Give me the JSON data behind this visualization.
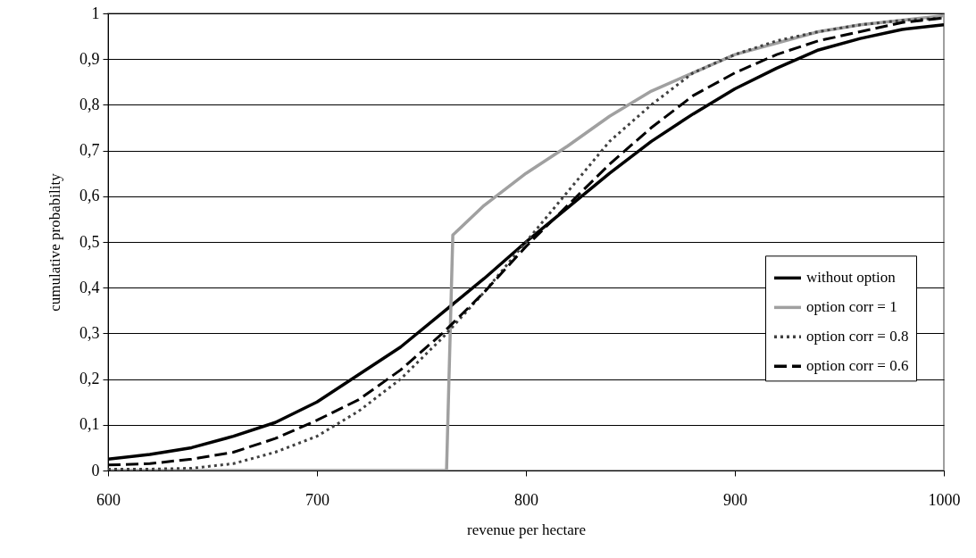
{
  "chart_data": {
    "type": "line",
    "xlabel": "revenue per hectare",
    "ylabel": "cumulative probability",
    "x": [
      600,
      620,
      640,
      660,
      680,
      700,
      720,
      740,
      760,
      780,
      800,
      820,
      840,
      860,
      880,
      900,
      920,
      940,
      960,
      980,
      1000
    ],
    "xlim": [
      600,
      1000
    ],
    "xticks": [
      600,
      700,
      800,
      900,
      1000
    ],
    "ylim": [
      0,
      1
    ],
    "yticks": [
      0,
      {
        "value": 0.1,
        "label": "0,1"
      },
      {
        "value": 0.2,
        "label": "0,2"
      },
      {
        "value": 0.3,
        "label": "0,3"
      },
      {
        "value": 0.4,
        "label": "0,4"
      },
      {
        "value": 0.5,
        "label": "0,5"
      },
      {
        "value": 0.6,
        "label": "0,6"
      },
      {
        "value": 0.7,
        "label": "0,7"
      },
      {
        "value": 0.8,
        "label": "0,8"
      },
      {
        "value": 0.9,
        "label": "0,9"
      },
      1
    ],
    "grid": "y",
    "legend": "right",
    "marker": "none",
    "series": [
      {
        "name": "without option",
        "color": "#000000",
        "line_style": "solid",
        "values": [
          0.025,
          0.035,
          0.05,
          0.075,
          0.105,
          0.15,
          0.21,
          0.27,
          0.345,
          0.42,
          0.5,
          0.575,
          0.65,
          0.72,
          0.78,
          0.835,
          0.88,
          0.92,
          0.945,
          0.965,
          0.975
        ]
      },
      {
        "name": "option corr = 1",
        "color": "#a0a0a0",
        "line_style": "solid",
        "x": [
          600,
          762,
          765,
          780,
          800,
          820,
          840,
          860,
          880,
          900,
          920,
          940,
          960,
          980,
          1000
        ],
        "values": [
          0,
          0,
          0.515,
          0.58,
          0.65,
          0.71,
          0.775,
          0.83,
          0.87,
          0.91,
          0.935,
          0.96,
          0.975,
          0.985,
          0.995
        ]
      },
      {
        "name": "option corr = 0.8",
        "color": "#404040",
        "line_style": "dotted",
        "values": [
          0.003,
          0.003,
          0.005,
          0.015,
          0.04,
          0.075,
          0.13,
          0.2,
          0.29,
          0.39,
          0.5,
          0.61,
          0.72,
          0.8,
          0.87,
          0.91,
          0.94,
          0.96,
          0.975,
          0.985,
          0.99
        ]
      },
      {
        "name": "option corr = 0.6",
        "color": "#000000",
        "line_style": "dashed",
        "values": [
          0.012,
          0.015,
          0.025,
          0.04,
          0.07,
          0.11,
          0.155,
          0.22,
          0.3,
          0.39,
          0.49,
          0.58,
          0.67,
          0.75,
          0.82,
          0.87,
          0.91,
          0.94,
          0.96,
          0.98,
          0.99
        ]
      }
    ]
  }
}
